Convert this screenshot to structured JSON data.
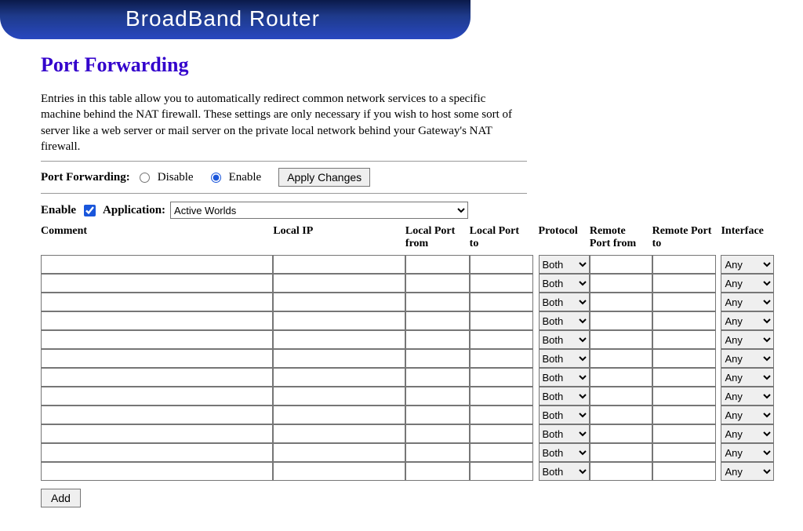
{
  "banner": {
    "title": "BroadBand Router"
  },
  "page": {
    "title": "Port Forwarding",
    "description": "Entries in this table allow you to automatically redirect common network services to a specific machine behind the NAT firewall. These settings are only necessary if you wish to host some sort of server like a web server or mail server on the private local network behind your Gateway's NAT firewall."
  },
  "toggle": {
    "label": "Port Forwarding:",
    "disable_label": "Disable",
    "enable_label": "Enable",
    "selected": "enable",
    "apply_label": "Apply Changes"
  },
  "app_row": {
    "enable_label": "Enable",
    "enable_checked": true,
    "application_label": "Application:",
    "application_selected": "Active Worlds"
  },
  "table": {
    "headers": {
      "comment": "Comment",
      "local_ip": "Local IP",
      "local_port_from": "Local Port from",
      "local_port_to": "Local Port to",
      "protocol": "Protocol",
      "remote_port_from": "Remote Port from",
      "remote_port_to": "Remote Port to",
      "interface": "Interface"
    },
    "protocol_default": "Both",
    "interface_default": "Any",
    "row_count": 12
  },
  "buttons": {
    "add_label": "Add"
  }
}
